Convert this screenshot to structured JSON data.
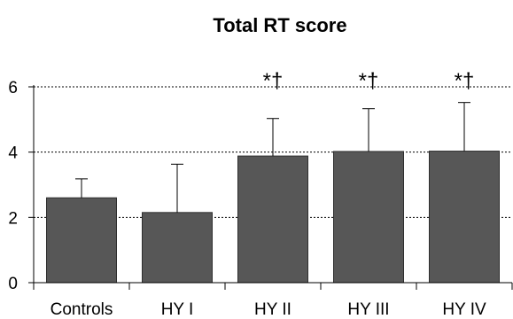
{
  "chart_data": {
    "type": "bar",
    "title": "Total RT score",
    "xlabel": "",
    "ylabel": "",
    "categories": [
      "Controls",
      "HY I",
      "HY II",
      "HY III",
      "HY IV"
    ],
    "values": [
      2.6,
      2.15,
      3.88,
      4.02,
      4.03
    ],
    "error_upper": [
      3.18,
      3.63,
      5.03,
      5.33,
      5.52
    ],
    "annotations": [
      "",
      "",
      "*†",
      "*†",
      "*†"
    ],
    "ylim": [
      0,
      6
    ],
    "yticks": [
      "0",
      "2",
      "4",
      "6"
    ],
    "ytick_values": [
      0,
      2,
      4,
      6
    ],
    "grid": "dotted horizontal at 2, 4, 6",
    "bar_color": "#575757",
    "axis_color": "#000000"
  }
}
